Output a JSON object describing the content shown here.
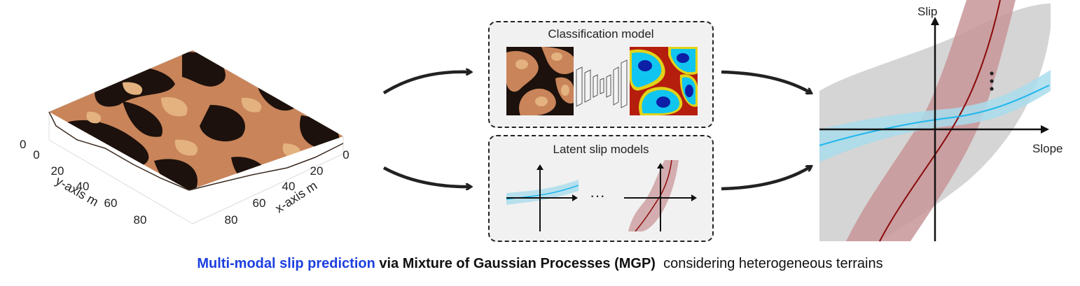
{
  "terrain": {
    "y_axis_label": "y-axis m",
    "x_axis_label": "x-axis m",
    "y_ticks": [
      "0",
      "20",
      "40",
      "60",
      "80"
    ],
    "x_ticks": [
      "0",
      "20",
      "40",
      "60",
      "80"
    ],
    "z_tick": "0",
    "colors": {
      "dark": "#1c110c",
      "mid": "#c9845a",
      "light": "#e3b27e"
    }
  },
  "classification_box": {
    "title": "Classification model"
  },
  "latent_box": {
    "title": "Latent slip models",
    "ellipsis": "···"
  },
  "mixture_plot": {
    "y_label": "Slip",
    "x_label": "Slope",
    "colors": {
      "gray_band": "#d3d3d3",
      "red_band": "#c89598",
      "red_line": "#8b0a0a",
      "blue_band": "#a9dcec",
      "blue_line": "#1fb7ee"
    }
  },
  "caption": {
    "part1": "Multi-modal slip prediction",
    "part2": " via Mixture of Gaussian Processes (MGP)",
    "part3": "  considering heterogeneous terrains"
  }
}
